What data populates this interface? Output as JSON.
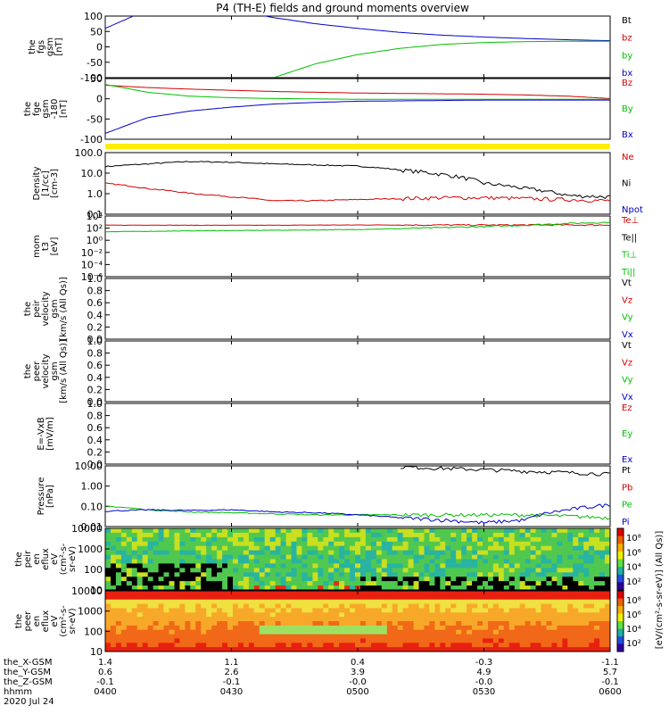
{
  "title": "P4 (TH-E) fields and ground moments overview",
  "chart_data": [
    {
      "id": "fgs",
      "type": "line",
      "ylabel": [
        "the",
        "fgs",
        "gsm",
        "[nT]"
      ],
      "yticks": [
        "100",
        "50",
        "0",
        "-50",
        "-100"
      ],
      "ylim": [
        -100,
        100
      ],
      "legend": [
        {
          "label": "Bt",
          "color": "#000000"
        },
        {
          "label": "bz",
          "color": "#d40000"
        },
        {
          "label": "by",
          "color": "#00c000"
        },
        {
          "label": "bx",
          "color": "#0000c8"
        }
      ],
      "x": [
        0,
        10,
        20,
        30,
        40,
        50,
        60,
        70,
        80,
        90,
        100,
        110,
        120
      ],
      "series": [
        {
          "name": "bx",
          "values": [
            60,
            120,
            140,
            120,
            95,
            75,
            60,
            47,
            38,
            32,
            27,
            23,
            20
          ]
        },
        {
          "name": "by",
          "values": [
            null,
            null,
            null,
            null,
            -100,
            -55,
            -25,
            -5,
            8,
            14,
            17,
            18,
            18
          ]
        },
        {
          "name": "bz",
          "values": [
            null,
            null,
            null,
            null,
            null,
            null,
            null,
            null,
            null,
            null,
            null,
            null,
            null
          ]
        }
      ]
    },
    {
      "id": "fge",
      "type": "line",
      "ylabel": [
        "the",
        "fge",
        "gsm",
        "-180",
        "[nT]"
      ],
      "yticks": [
        "50",
        "0",
        "-50",
        "-100"
      ],
      "ylim": [
        -100,
        55
      ],
      "legend": [
        {
          "label": "Bz",
          "color": "#d40000"
        },
        {
          "label": "By",
          "color": "#00c000"
        },
        {
          "label": "Bx",
          "color": "#0000c8"
        }
      ],
      "x": [
        0,
        10,
        20,
        30,
        40,
        50,
        60,
        70,
        80,
        90,
        100,
        110,
        120
      ],
      "series": [
        {
          "name": "Bz",
          "values": [
            38,
            32,
            28,
            25,
            22,
            20,
            18,
            17,
            16,
            15,
            13,
            10,
            4
          ]
        },
        {
          "name": "By",
          "values": [
            40,
            20,
            10,
            6,
            4,
            3,
            2,
            2,
            2,
            2,
            2,
            2,
            2
          ]
        },
        {
          "name": "Bx",
          "values": [
            -85,
            -45,
            -28,
            -18,
            -10,
            -6,
            -3,
            -2,
            -1,
            0,
            0,
            0,
            0
          ]
        }
      ]
    },
    {
      "id": "density",
      "type": "line",
      "log": true,
      "ylabel": [
        "Density",
        "[1/cc]",
        "[cm-3]"
      ],
      "yticks": [
        "100.0",
        "10.0",
        "1.0",
        "0.1"
      ],
      "ylim": [
        0.05,
        180
      ],
      "legend": [
        {
          "label": "Ne",
          "color": "#d40000"
        },
        {
          "label": "Ni",
          "color": "#000000"
        },
        {
          "label": "Npot",
          "color": "#0000c8"
        }
      ],
      "x": [
        0,
        10,
        20,
        30,
        40,
        50,
        60,
        70,
        80,
        90,
        100,
        110,
        120
      ],
      "series": [
        {
          "name": "Ni",
          "values": [
            28,
            40,
            55,
            50,
            40,
            35,
            30,
            18,
            10,
            3,
            1.5,
            0.6,
            0.5
          ]
        },
        {
          "name": "Ne",
          "values": [
            3.0,
            1.5,
            0.8,
            0.5,
            0.3,
            0.3,
            0.35,
            0.4,
            0.45,
            0.45,
            0.4,
            0.35,
            0.3
          ]
        }
      ]
    },
    {
      "id": "temp",
      "type": "line",
      "log": true,
      "ylabel": [
        "mom",
        "t3",
        "[eV]"
      ],
      "yticks": [
        "10⁴",
        "10²",
        "10⁰",
        "10⁻²",
        "10⁻⁴",
        "10⁻⁶"
      ],
      "ylim": [
        1e-06,
        10000.0
      ],
      "legend": [
        {
          "label": "Te⊥",
          "color": "#d40000"
        },
        {
          "label": "Te||",
          "color": "#000000"
        },
        {
          "label": "Ti⊥",
          "color": "#00c000"
        },
        {
          "label": "Ti||",
          "color": "#00c000"
        }
      ],
      "x": [
        0,
        10,
        20,
        30,
        40,
        50,
        60,
        70,
        80,
        90,
        100,
        110,
        120
      ],
      "series": [
        {
          "name": "Te⊥",
          "values": [
            300,
            320,
            300,
            300,
            300,
            320,
            330,
            330,
            330,
            330,
            330,
            330,
            330
          ]
        },
        {
          "name": "Ti",
          "values": [
            25,
            30,
            35,
            40,
            45,
            50,
            60,
            80,
            120,
            180,
            300,
            600,
            900
          ]
        }
      ]
    },
    {
      "id": "vel_peir",
      "type": "line",
      "ylabel": [
        "the",
        "peir",
        "velocity",
        "gsm",
        "[km/s (All Qs)]"
      ],
      "yticks": [
        "1.0",
        "0.8",
        "0.6",
        "0.4",
        "0.2",
        "0.0"
      ],
      "ylim": [
        0,
        1
      ],
      "legend": [
        {
          "label": "Vt",
          "color": "#000000"
        },
        {
          "label": "Vz",
          "color": "#d40000"
        },
        {
          "label": "Vy",
          "color": "#00c000"
        },
        {
          "label": "Vx",
          "color": "#0000c8"
        }
      ]
    },
    {
      "id": "vel_peer",
      "type": "line",
      "ylabel": [
        "the",
        "peer",
        "velocity",
        "gsm",
        "[km/s (All Qs)]"
      ],
      "yticks": [
        "1.0",
        "0.8",
        "0.6",
        "0.4",
        "0.2",
        "0.0"
      ],
      "ylim": [
        0,
        1
      ],
      "legend": [
        {
          "label": "Vt",
          "color": "#000000"
        },
        {
          "label": "Vz",
          "color": "#d40000"
        },
        {
          "label": "Vy",
          "color": "#00c000"
        },
        {
          "label": "Vx",
          "color": "#0000c8"
        }
      ]
    },
    {
      "id": "efield",
      "type": "line",
      "ylabel": [
        "E=-VxB",
        "[mV/m]"
      ],
      "yticks": [
        "1.0",
        "0.8",
        "0.6",
        "0.4",
        "0.2",
        "0.0"
      ],
      "ylim": [
        0,
        1
      ],
      "legend": [
        {
          "label": "Ez",
          "color": "#d40000"
        },
        {
          "label": "Ey",
          "color": "#00c000"
        },
        {
          "label": "Ex",
          "color": "#0000c8"
        }
      ]
    },
    {
      "id": "pressure",
      "type": "line",
      "log": true,
      "ylabel": [
        "Pressure",
        "[nPa]"
      ],
      "yticks": [
        "10.00",
        "1.00",
        "0.10",
        "0.01"
      ],
      "ylim": [
        0.006,
        25
      ],
      "legend": [
        {
          "label": "Pt",
          "color": "#000000"
        },
        {
          "label": "Pb",
          "color": "#d40000"
        },
        {
          "label": "Pe",
          "color": "#00c000"
        },
        {
          "label": "Pi",
          "color": "#0000c8"
        }
      ],
      "x": [
        0,
        10,
        20,
        30,
        40,
        50,
        60,
        70,
        80,
        90,
        100,
        110,
        120
      ],
      "series": [
        {
          "name": "Pt",
          "values": [
            null,
            null,
            null,
            null,
            null,
            null,
            null,
            22,
            18,
            15,
            12,
            10,
            8
          ]
        },
        {
          "name": "Pe",
          "values": [
            0.1,
            0.06,
            0.045,
            0.04,
            0.035,
            0.03,
            0.03,
            0.03,
            0.03,
            0.03,
            0.03,
            0.025,
            0.02
          ]
        },
        {
          "name": "Pi",
          "values": [
            0.05,
            0.06,
            0.055,
            0.06,
            0.045,
            0.04,
            0.03,
            0.02,
            0.015,
            0.01,
            0.015,
            0.06,
            0.12
          ]
        }
      ]
    },
    {
      "id": "peir_spec",
      "type": "heatmap",
      "ylabel": [
        "the",
        "peir",
        "en",
        "eflux",
        "eV",
        "(cm²-s-",
        "sr-eV)"
      ],
      "yticks": [
        "10000",
        "1000",
        "100",
        "10"
      ]
    },
    {
      "id": "peer_spec",
      "type": "heatmap",
      "ylabel": [
        "the",
        "peer",
        "en",
        "eflux",
        "eV",
        "(cm²-s-",
        "sr-eV)"
      ],
      "yticks": [
        "10000",
        "1000",
        "100",
        "10"
      ]
    }
  ],
  "colorbar": {
    "ticks": [
      "10⁸",
      "10⁶",
      "10⁴",
      "10²"
    ],
    "label": "[eV/(cm²-s-sr-eV)] (All Qs)]"
  },
  "footer": {
    "rows": [
      {
        "label": "the_X-GSM",
        "values": [
          "1.4",
          "1.1",
          "0.4",
          "-0.3",
          "-1.1"
        ]
      },
      {
        "label": "the_Y-GSM",
        "values": [
          "0.6",
          "2.6",
          "3.9",
          "4.9",
          "5.7"
        ]
      },
      {
        "label": "the_Z-GSM",
        "values": [
          "-0.1",
          "-0.1",
          "-0.0",
          "-0.0",
          "-0.1"
        ]
      },
      {
        "label": "hhmm",
        "values": [
          "0400",
          "0430",
          "0500",
          "0530",
          "0600"
        ]
      }
    ],
    "date": "2020 Jul 24"
  }
}
